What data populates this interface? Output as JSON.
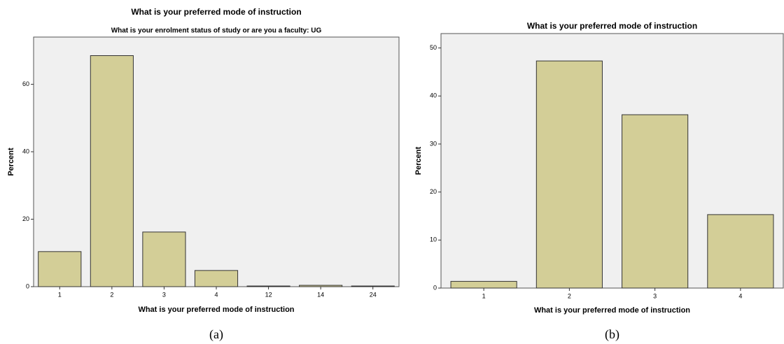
{
  "chart_data": [
    {
      "type": "bar",
      "title": "What is your preferred mode of instruction",
      "subtitle": "What is your enrolment status of study or are you a faculty: UG",
      "x_label": "What is your preferred mode of instruction",
      "y_label": "Percent",
      "caption": "(a)",
      "categories": [
        "1",
        "2",
        "3",
        "4",
        "12",
        "14",
        "24"
      ],
      "values": [
        10.4,
        68.5,
        16.2,
        4.8,
        0.2,
        0.4,
        0.2
      ],
      "color": "#d3ce97",
      "ylim": [
        0,
        74
      ],
      "yticks": [
        0,
        20,
        40,
        60
      ]
    },
    {
      "type": "bar",
      "title": "What is your preferred mode of instruction",
      "x_label": "What is your preferred mode of instruction",
      "y_label": "Percent",
      "caption": "(b)",
      "categories": [
        "1",
        "2",
        "3",
        "4"
      ],
      "values": [
        1.4,
        47.3,
        36.1,
        15.3
      ],
      "color": "#d3ce97",
      "ylim": [
        0,
        53
      ],
      "yticks": [
        0,
        10,
        20,
        30,
        40,
        50
      ]
    }
  ]
}
